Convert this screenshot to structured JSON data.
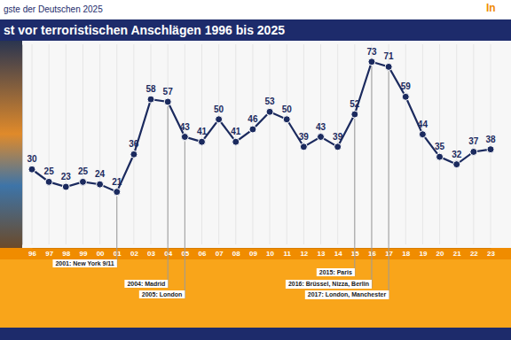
{
  "header": "gste der Deutschen 2025",
  "logo": "In",
  "chart_data": {
    "type": "line",
    "title": "st vor terroristischen Anschlägen 1996 bis 2025",
    "categories": [
      "96",
      "97",
      "98",
      "99",
      "00",
      "01",
      "02",
      "03",
      "04",
      "05",
      "06",
      "07",
      "08",
      "09",
      "10",
      "11",
      "12",
      "13",
      "14",
      "15",
      "16",
      "17",
      "18",
      "19",
      "20",
      "21",
      "22",
      "23"
    ],
    "values": [
      30,
      25,
      23,
      25,
      24,
      21,
      36,
      58,
      57,
      43,
      41,
      50,
      41,
      46,
      53,
      50,
      39,
      43,
      39,
      52,
      73,
      71,
      59,
      44,
      35,
      32,
      37,
      38
    ],
    "color": "#1b2a5e",
    "marker": "circle",
    "ylim": [
      0,
      80
    ],
    "grid": true,
    "data_labels": true,
    "tick_labels": "x",
    "annotations": [
      {
        "category": "01",
        "label": "2001: New York 9/11"
      },
      {
        "category": "04",
        "label": "2004: Madrid"
      },
      {
        "category": "05",
        "label": "2005: London"
      },
      {
        "category": "15",
        "label": "2015: Paris"
      },
      {
        "category": "16",
        "label": "2016: Brüssel, Nizza, Berlin"
      },
      {
        "category": "17",
        "label": "2017: London, Manchester"
      }
    ]
  }
}
